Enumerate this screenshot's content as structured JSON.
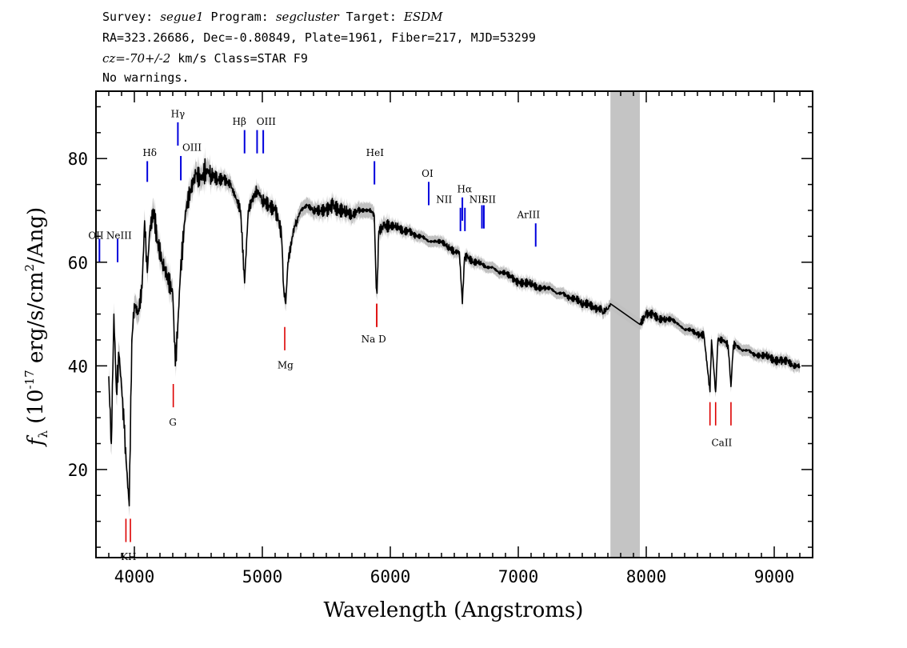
{
  "header": {
    "line1": [
      {
        "t": "Survey: ",
        "it": false
      },
      {
        "t": "segue1",
        "it": true
      },
      {
        "t": " Program: ",
        "it": false
      },
      {
        "t": "segcluster",
        "it": true
      },
      {
        "t": " Target: ",
        "it": false
      },
      {
        "t": "ESDM",
        "it": true
      }
    ],
    "line2": "RA=323.26686, Dec=-0.80849, Plate=1961, Fiber=217, MJD=53299",
    "line3": [
      {
        "t": "cz=-70+/-2",
        "it": true
      },
      {
        "t": " km/s Class=STAR F9",
        "it": false
      }
    ],
    "line4": "No warnings."
  },
  "chart_data": {
    "type": "line",
    "xlabel": "Wavelength (Angstroms)",
    "ylabel": "f_λ (10^-17 erg/s/cm^2/Ang)",
    "xlim": [
      3700,
      9300
    ],
    "ylim": [
      3,
      93
    ],
    "xticks": [
      4000,
      5000,
      6000,
      7000,
      8000,
      9000
    ],
    "yticks": [
      20,
      40,
      60,
      80
    ],
    "masked_region": [
      7720,
      7950
    ],
    "colors": {
      "flux": "#000000",
      "error": "#c0c0c0",
      "emission": "#0000dd",
      "absorption": "#dd0000",
      "mask": "#c4c4c4"
    },
    "series": [
      {
        "x": [
          3800,
          3820,
          3840,
          3860,
          3880,
          3900,
          3920,
          3940,
          3960,
          3980,
          4000,
          4030,
          4060,
          4080,
          4101,
          4120,
          4150,
          4180,
          4220,
          4260,
          4300,
          4320,
          4340,
          4360,
          4400,
          4440,
          4480,
          4520,
          4560,
          4600,
          4650,
          4700,
          4750,
          4800,
          4830,
          4861,
          4890,
          4920,
          4960,
          5000,
          5050,
          5100,
          5130,
          5150,
          5167,
          5183,
          5200,
          5250,
          5270,
          5300,
          5350,
          5400,
          5450,
          5500,
          5550,
          5600,
          5650,
          5700,
          5750,
          5800,
          5850,
          5875,
          5890,
          5896,
          5910,
          5950,
          6000,
          6050,
          6100,
          6150,
          6200,
          6250,
          6300,
          6350,
          6400,
          6450,
          6500,
          6540,
          6563,
          6580,
          6600,
          6650,
          6700,
          6750,
          6800,
          6850,
          6900,
          6950,
          7000,
          7050,
          7100,
          7150,
          7200,
          7250,
          7300,
          7350,
          7400,
          7450,
          7500,
          7550,
          7600,
          7650,
          7660,
          7680,
          7700,
          7720,
          7950,
          8000,
          8050,
          8100,
          8150,
          8200,
          8250,
          8300,
          8350,
          8400,
          8450,
          8498,
          8510,
          8542,
          8560,
          8600,
          8640,
          8662,
          8680,
          8700,
          8750,
          8800,
          8850,
          8900,
          8950,
          9000,
          9050,
          9100,
          9150,
          9200
        ],
        "values": [
          38,
          25,
          50,
          35,
          42,
          36,
          28,
          20,
          13,
          45,
          52,
          50,
          55,
          68,
          58,
          66,
          70,
          64,
          60,
          57,
          54,
          40,
          48,
          58,
          70,
          74,
          77,
          76,
          78,
          77,
          76,
          76,
          75,
          72,
          70,
          56,
          70,
          72,
          74,
          72,
          71,
          70,
          68,
          65,
          55,
          52,
          60,
          67,
          68,
          70,
          71,
          70,
          70,
          70,
          71,
          70,
          70,
          69,
          70,
          70,
          70,
          69,
          55,
          54,
          66,
          67,
          67,
          67,
          66,
          66,
          65,
          65,
          64,
          64,
          64,
          63,
          62,
          62,
          52,
          61,
          61,
          60,
          60,
          59,
          59,
          58,
          58,
          57,
          56,
          56,
          56,
          55,
          55,
          55,
          54,
          54,
          53,
          53,
          52,
          52,
          51,
          51,
          50,
          51,
          51,
          52,
          48,
          50,
          50,
          49,
          49,
          49,
          48,
          47,
          47,
          46,
          46,
          35,
          45,
          35,
          45,
          45,
          44,
          36,
          44,
          44,
          43,
          43,
          42,
          42,
          42,
          41,
          41,
          41,
          40,
          40
        ]
      }
    ],
    "emission_lines": [
      {
        "label": "OII",
        "x": 3727,
        "y": [
          60,
          64.5
        ]
      },
      {
        "label": "NeIII",
        "x": 3869,
        "y": [
          60,
          64.5
        ]
      },
      {
        "label": "Hδ",
        "x": 4101,
        "y": [
          75.5,
          79.5
        ]
      },
      {
        "label": "Hγ",
        "x": 4340,
        "y": [
          82.5,
          87
        ]
      },
      {
        "label": "OIII",
        "x": 4363,
        "y": [
          75.8,
          80.5
        ]
      },
      {
        "label": "Hβ",
        "x": 4861,
        "y": [
          81,
          85.5
        ]
      },
      {
        "label": "OIII",
        "x": 4959,
        "y": [
          81,
          85.5
        ]
      },
      {
        "label": "OIII",
        "x": 5007,
        "y": [
          81,
          85.5
        ]
      },
      {
        "label": "HeI",
        "x": 5876,
        "y": [
          75,
          79.5
        ]
      },
      {
        "label": "OI",
        "x": 6300,
        "y": [
          71,
          75.5
        ]
      },
      {
        "label": "NII",
        "x": 6548,
        "y": [
          66,
          70.5
        ]
      },
      {
        "label": "Hα",
        "x": 6563,
        "y": [
          68,
          72.5
        ]
      },
      {
        "label": "NII",
        "x": 6583,
        "y": [
          66,
          70.5
        ]
      },
      {
        "label": "SII",
        "x": 6716,
        "y": [
          66.5,
          71
        ]
      },
      {
        "label": "SII",
        "x": 6731,
        "y": [
          66.5,
          71
        ]
      },
      {
        "label": "ArIII",
        "x": 7136,
        "y": [
          63,
          67.5
        ]
      }
    ],
    "absorption_lines": [
      {
        "label": "K",
        "x": 3934,
        "y": [
          6,
          10.5
        ]
      },
      {
        "label": "H",
        "x": 3969,
        "y": [
          6,
          10.5
        ]
      },
      {
        "label": "G",
        "x": 4304,
        "y": [
          32,
          36.5
        ]
      },
      {
        "label": "Mg",
        "x": 5175,
        "y": [
          43,
          47.5
        ]
      },
      {
        "label": "Na",
        "x": 5894,
        "y": [
          47.5,
          52
        ]
      },
      {
        "label": "D",
        "x": 5894,
        "y": [
          47.5,
          52
        ]
      },
      {
        "label": "CaII",
        "x": 8498,
        "y": [
          28.5,
          33
        ]
      },
      {
        "label": "CaII",
        "x": 8542,
        "y": [
          28.5,
          33
        ]
      },
      {
        "label": "CaII",
        "x": 8662,
        "y": [
          28.5,
          33
        ]
      }
    ],
    "annotations": [
      {
        "text": "OII",
        "x": 3700,
        "y": 64.5
      },
      {
        "text": "NeIII",
        "x": 3880,
        "y": 64.5
      },
      {
        "text": "Hδ",
        "x": 4120,
        "y": 80.5
      },
      {
        "text": "Hγ",
        "x": 4340,
        "y": 88
      },
      {
        "text": "OIII",
        "x": 4450,
        "y": 81.5
      },
      {
        "text": "Hβ",
        "x": 4820,
        "y": 86.5
      },
      {
        "text": "OIII",
        "x": 5030,
        "y": 86.5
      },
      {
        "text": "HeI",
        "x": 5880,
        "y": 80.5
      },
      {
        "text": "OI",
        "x": 6290,
        "y": 76.5
      },
      {
        "text": "Hα",
        "x": 6580,
        "y": 73.5
      },
      {
        "text": "NII",
        "x": 6420,
        "y": 71.5
      },
      {
        "text": "NII",
        "x": 6680,
        "y": 71.5
      },
      {
        "text": "SII",
        "x": 6770,
        "y": 71.5
      },
      {
        "text": "ArIII",
        "x": 7080,
        "y": 68.5
      },
      {
        "text": "KH",
        "x": 3955,
        "y": 2.5
      },
      {
        "text": "G",
        "x": 4300,
        "y": 28.5
      },
      {
        "text": "Mg",
        "x": 5180,
        "y": 39.5
      },
      {
        "text": "Na  D",
        "x": 5870,
        "y": 44.5
      },
      {
        "text": "CaII",
        "x": 8590,
        "y": 24.5
      }
    ]
  }
}
